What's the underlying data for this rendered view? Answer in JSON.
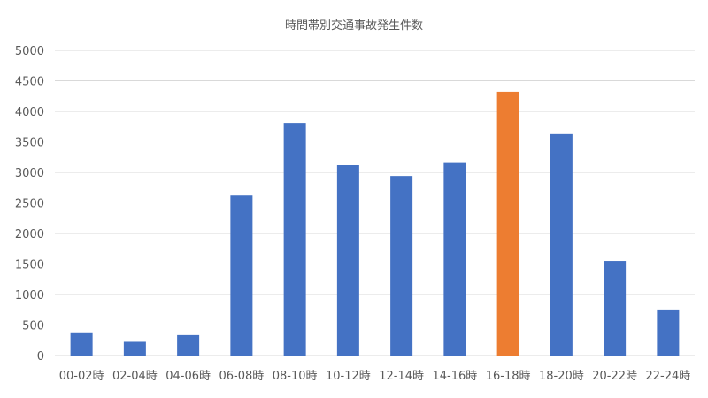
{
  "chart_data": {
    "type": "bar",
    "title": "時間帯別交通事故発生件数",
    "xlabel": "",
    "ylabel": "",
    "categories": [
      "00-02時",
      "02-04時",
      "04-06時",
      "06-08時",
      "08-10時",
      "10-12時",
      "12-14時",
      "14-16時",
      "16-18時",
      "18-20時",
      "20-22時",
      "22-24時"
    ],
    "values": [
      380,
      225,
      335,
      2620,
      3810,
      3120,
      2940,
      3165,
      4320,
      3640,
      1550,
      755
    ],
    "ylim": [
      0,
      5000
    ],
    "yticks": [
      0,
      500,
      1000,
      1500,
      2000,
      2500,
      3000,
      3500,
      4000,
      4500,
      5000
    ],
    "grid": true,
    "legend": "none",
    "colors": {
      "bar": "#4472C4",
      "highlight": "#ED7D31",
      "grid": "#D9D9D9",
      "text": "#595959"
    },
    "highlight_index": 8
  }
}
